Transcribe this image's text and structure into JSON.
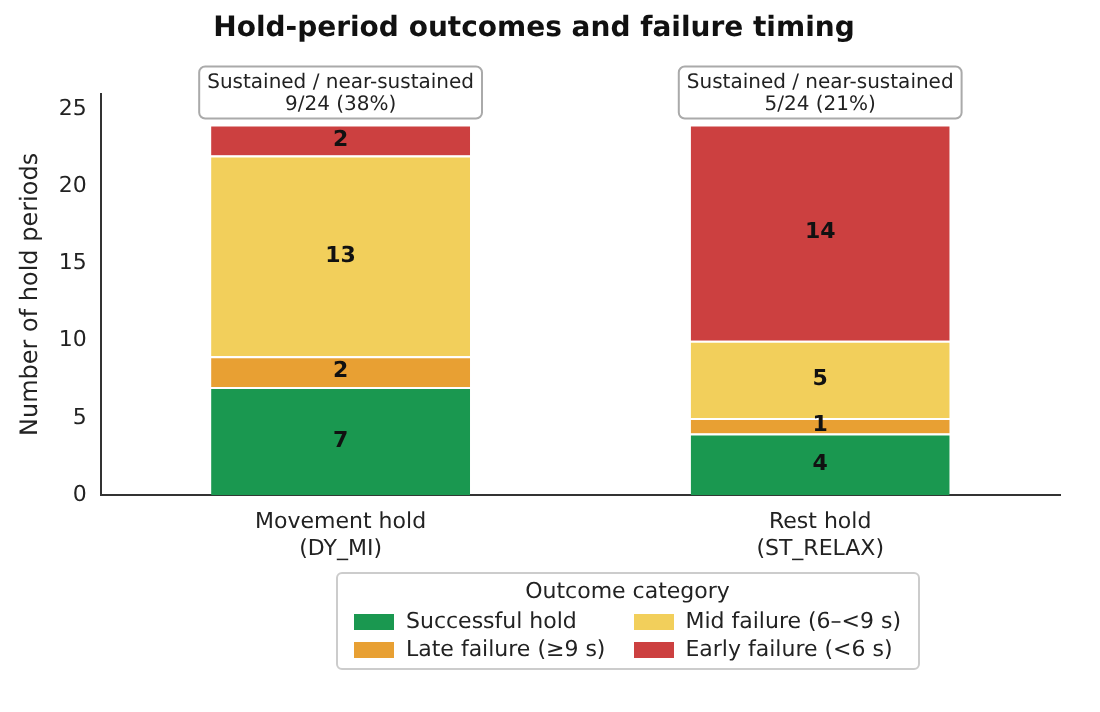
{
  "chart_data": {
    "type": "bar",
    "title": "Hold-period outcomes and failure timing",
    "ylabel": "Number of hold periods",
    "legend_title": "Outcome category",
    "categories": [
      "Movement hold\n(DY_MI)",
      "Rest hold\n(ST_RELAX)"
    ],
    "stacked": true,
    "series": [
      {
        "name": "Successful hold",
        "color": "#1a9850",
        "values": [
          7,
          4
        ]
      },
      {
        "name": "Late failure (≥9 s)",
        "color": "#e8a033",
        "values": [
          2,
          1
        ]
      },
      {
        "name": "Mid failure (6–<9 s)",
        "color": "#f2cf5b",
        "values": [
          13,
          5
        ]
      },
      {
        "name": "Early failure (<6 s)",
        "color": "#cc4040",
        "values": [
          2,
          14
        ]
      }
    ],
    "ylim": [
      0,
      26
    ],
    "yticks": [
      0,
      5,
      10,
      15,
      20,
      25
    ],
    "grid": false,
    "legend": "bottom",
    "data_labels": true,
    "annotations": [
      {
        "text": "Sustained / near-sustained\n9/24 (38%)",
        "x": "Movement hold\n(DY_MI)",
        "y": 24
      },
      {
        "text": "Sustained / near-sustained\n5/24 (21%)",
        "x": "Rest hold\n(ST_RELAX)",
        "y": 24
      }
    ]
  }
}
